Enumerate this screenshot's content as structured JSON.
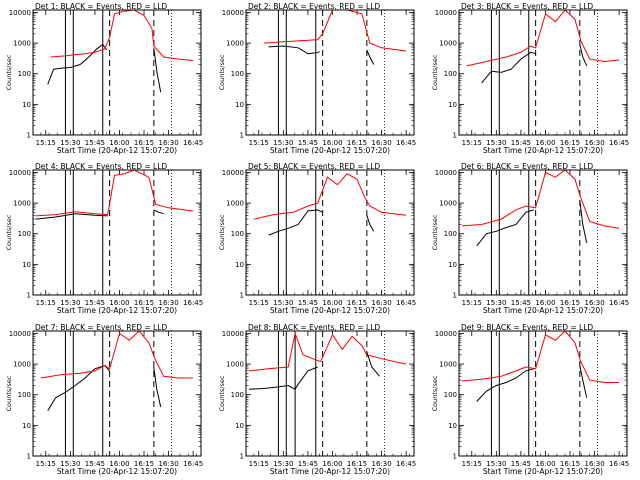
{
  "figure": {
    "xlabel": "Start Time (20-Apr-12 15:07:20)",
    "ylabel": "Counts/sec",
    "x_tick_labels": [
      "15:15",
      "15:30",
      "15:45",
      "16:00",
      "16:15",
      "16:30",
      "16:45"
    ],
    "y_tick_labels": [
      "1",
      "10",
      "100",
      "1000",
      "10000"
    ],
    "colors": {
      "events": "#000000",
      "lld": "#ff0000",
      "axes": "#000000"
    }
  },
  "chart_data": [
    {
      "type": "line",
      "title": "Det 1: BLACK = Events, RED = LLD",
      "row": 0,
      "col": 0,
      "xlim": [
        15.12,
        16.83
      ],
      "ylim": [
        1,
        12000
      ],
      "yscale": "log",
      "solid_vlines": [
        15.45,
        15.53,
        15.83
      ],
      "dashed_vlines": [
        15.9,
        16.35
      ],
      "dotted_vlines": [
        16.53
      ],
      "series": [
        {
          "name": "Events",
          "color": "#000000",
          "x": [
            15.27,
            15.33,
            15.4,
            15.5,
            15.6,
            15.7,
            15.77,
            15.83,
            15.87
          ],
          "y": [
            45,
            140,
            150,
            160,
            200,
            380,
            650,
            900,
            600
          ]
        },
        {
          "name": "Events",
          "color": "#000000",
          "x": [
            16.35,
            16.38,
            16.42
          ],
          "y": [
            700,
            120,
            25
          ]
        },
        {
          "name": "LLD",
          "color": "#ff0000",
          "x": [
            15.3,
            15.45,
            15.55,
            15.65,
            15.75,
            15.85,
            15.9,
            15.95,
            16.05,
            16.15,
            16.25,
            16.33,
            16.35,
            16.45,
            16.6,
            16.75
          ],
          "y": [
            350,
            380,
            420,
            450,
            500,
            650,
            1500,
            9000,
            11000,
            12000,
            8000,
            3000,
            800,
            350,
            300,
            270
          ]
        }
      ]
    },
    {
      "type": "line",
      "title": "Det 2: BLACK = Events, RED = LLD",
      "row": 0,
      "col": 1,
      "xlim": [
        15.12,
        16.83
      ],
      "ylim": [
        1,
        12000
      ],
      "yscale": "log",
      "solid_vlines": [
        15.45,
        15.53,
        15.83
      ],
      "dashed_vlines": [
        15.9,
        16.35
      ],
      "dotted_vlines": [
        16.53
      ],
      "series": [
        {
          "name": "Events",
          "color": "#000000",
          "x": [
            15.35,
            15.5,
            15.65,
            15.75,
            15.83,
            15.87
          ],
          "y": [
            750,
            800,
            700,
            450,
            480,
            520
          ]
        },
        {
          "name": "Events",
          "color": "#000000",
          "x": [
            16.35,
            16.38,
            16.42
          ],
          "y": [
            600,
            350,
            200
          ]
        },
        {
          "name": "LLD",
          "color": "#ff0000",
          "x": [
            15.3,
            15.5,
            15.7,
            15.85,
            15.9,
            16.0,
            16.15,
            16.3,
            16.38,
            16.5,
            16.75
          ],
          "y": [
            1000,
            1100,
            1200,
            1300,
            2000,
            12000,
            12000,
            9000,
            1000,
            700,
            550
          ]
        }
      ]
    },
    {
      "type": "line",
      "title": "Det 3: BLACK = Events, RED = LLD",
      "row": 0,
      "col": 2,
      "xlim": [
        15.12,
        16.83
      ],
      "ylim": [
        1,
        12000
      ],
      "yscale": "log",
      "solid_vlines": [
        15.45,
        15.53,
        15.83
      ],
      "dashed_vlines": [
        15.9,
        16.35
      ],
      "dotted_vlines": [
        16.53
      ],
      "series": [
        {
          "name": "Events",
          "color": "#000000",
          "x": [
            15.35,
            15.45,
            15.55,
            15.65,
            15.75,
            15.85,
            15.9
          ],
          "y": [
            50,
            120,
            110,
            140,
            300,
            500,
            450
          ]
        },
        {
          "name": "Events",
          "color": "#000000",
          "x": [
            16.35,
            16.38,
            16.42
          ],
          "y": [
            900,
            350,
            180
          ]
        },
        {
          "name": "LLD",
          "color": "#ff0000",
          "x": [
            15.2,
            15.4,
            15.6,
            15.75,
            15.85,
            15.9,
            16.0,
            16.1,
            16.2,
            16.3,
            16.36,
            16.45,
            16.6,
            16.75
          ],
          "y": [
            180,
            250,
            350,
            500,
            800,
            700,
            9000,
            5000,
            12000,
            6000,
            1200,
            300,
            250,
            280
          ]
        }
      ]
    },
    {
      "type": "line",
      "title": "Det 4: BLACK = Events, RED = LLD",
      "row": 1,
      "col": 0,
      "xlim": [
        15.12,
        16.83
      ],
      "ylim": [
        1,
        12000
      ],
      "yscale": "log",
      "solid_vlines": [
        15.45,
        15.53,
        15.83
      ],
      "dashed_vlines": [
        15.9,
        16.35
      ],
      "dotted_vlines": [
        16.53
      ],
      "series": [
        {
          "name": "Events",
          "color": "#000000",
          "x": [
            15.15,
            15.35,
            15.55,
            15.75,
            15.88
          ],
          "y": [
            300,
            350,
            450,
            400,
            380
          ]
        },
        {
          "name": "Events",
          "color": "#000000",
          "x": [
            16.35,
            16.4,
            16.45
          ],
          "y": [
            600,
            500,
            450
          ]
        },
        {
          "name": "LLD",
          "color": "#ff0000",
          "x": [
            15.15,
            15.35,
            15.55,
            15.75,
            15.88,
            15.95,
            16.05,
            16.15,
            16.3,
            16.37,
            16.5,
            16.75
          ],
          "y": [
            380,
            420,
            520,
            450,
            420,
            8000,
            9000,
            12000,
            7000,
            900,
            700,
            550
          ]
        }
      ]
    },
    {
      "type": "line",
      "title": "Det 5: BLACK = Events, RED = LLD",
      "row": 1,
      "col": 1,
      "xlim": [
        15.12,
        16.83
      ],
      "ylim": [
        1,
        12000
      ],
      "yscale": "log",
      "solid_vlines": [
        15.45,
        15.53,
        15.83
      ],
      "dashed_vlines": [
        15.9,
        16.35
      ],
      "dotted_vlines": [
        16.53
      ],
      "series": [
        {
          "name": "Events",
          "color": "#000000",
          "x": [
            15.35,
            15.45,
            15.55,
            15.65,
            15.75,
            15.85,
            15.9
          ],
          "y": [
            90,
            120,
            150,
            200,
            550,
            600,
            500
          ]
        },
        {
          "name": "Events",
          "color": "#000000",
          "x": [
            16.35,
            16.38,
            16.42
          ],
          "y": [
            400,
            200,
            120
          ]
        },
        {
          "name": "LLD",
          "color": "#ff0000",
          "x": [
            15.2,
            15.4,
            15.6,
            15.75,
            15.85,
            15.95,
            16.05,
            16.15,
            16.25,
            16.33,
            16.38,
            16.5,
            16.75
          ],
          "y": [
            300,
            420,
            500,
            800,
            1000,
            7000,
            4000,
            9000,
            6000,
            1500,
            800,
            500,
            400
          ]
        }
      ]
    },
    {
      "type": "line",
      "title": "Det 6: BLACK = Events, RED = LLD",
      "row": 1,
      "col": 2,
      "xlim": [
        15.12,
        16.83
      ],
      "ylim": [
        1,
        12000
      ],
      "yscale": "log",
      "solid_vlines": [
        15.45,
        15.53,
        15.83
      ],
      "dashed_vlines": [
        15.9,
        16.35
      ],
      "dotted_vlines": [
        16.53
      ],
      "series": [
        {
          "name": "Events",
          "color": "#000000",
          "x": [
            15.3,
            15.4,
            15.5,
            15.6,
            15.7,
            15.8,
            15.88
          ],
          "y": [
            40,
            100,
            120,
            160,
            200,
            500,
            600
          ]
        },
        {
          "name": "Events",
          "color": "#000000",
          "x": [
            16.35,
            16.38,
            16.42
          ],
          "y": [
            1200,
            200,
            50
          ]
        },
        {
          "name": "LLD",
          "color": "#ff0000",
          "x": [
            15.15,
            15.35,
            15.55,
            15.7,
            15.8,
            15.9,
            16.0,
            16.1,
            16.2,
            16.3,
            16.36,
            16.45,
            16.6,
            16.75
          ],
          "y": [
            180,
            200,
            300,
            600,
            800,
            700,
            10000,
            7000,
            12000,
            6000,
            1500,
            250,
            180,
            150
          ]
        }
      ]
    },
    {
      "type": "line",
      "title": "Det 7: BLACK = Events, RED = LLD",
      "row": 2,
      "col": 0,
      "xlim": [
        15.12,
        16.83
      ],
      "ylim": [
        1,
        12000
      ],
      "yscale": "log",
      "solid_vlines": [
        15.45,
        15.53,
        15.83
      ],
      "dashed_vlines": [
        15.9,
        16.35
      ],
      "dotted_vlines": [
        16.53
      ],
      "series": [
        {
          "name": "Events",
          "color": "#000000",
          "x": [
            15.27,
            15.35,
            15.45,
            15.55,
            15.65,
            15.75,
            15.85,
            15.9
          ],
          "y": [
            30,
            80,
            120,
            200,
            350,
            700,
            900,
            600
          ]
        },
        {
          "name": "Events",
          "color": "#000000",
          "x": [
            16.35,
            16.38,
            16.42
          ],
          "y": [
            800,
            150,
            40
          ]
        },
        {
          "name": "LLD",
          "color": "#ff0000",
          "x": [
            15.2,
            15.4,
            15.6,
            15.75,
            15.85,
            15.9,
            16.0,
            16.1,
            16.2,
            16.3,
            16.36,
            16.45,
            16.6,
            16.75
          ],
          "y": [
            350,
            450,
            500,
            600,
            900,
            700,
            10000,
            6000,
            12000,
            5000,
            1500,
            400,
            350,
            350
          ]
        }
      ]
    },
    {
      "type": "line",
      "title": "Det 8: BLACK = Events, RED = LLD",
      "row": 2,
      "col": 1,
      "xlim": [
        15.12,
        16.83
      ],
      "ylim": [
        1,
        12000
      ],
      "yscale": "log",
      "solid_vlines": [
        15.45,
        15.53,
        15.62,
        15.83
      ],
      "dashed_vlines": [
        15.9,
        16.35
      ],
      "dotted_vlines": [
        16.53
      ],
      "series": [
        {
          "name": "Events",
          "color": "#000000",
          "x": [
            15.15,
            15.3,
            15.45,
            15.55,
            15.62,
            15.65,
            15.75,
            15.85
          ],
          "y": [
            150,
            160,
            180,
            200,
            150,
            220,
            600,
            800
          ]
        },
        {
          "name": "Events",
          "color": "#000000",
          "x": [
            16.35,
            16.4,
            16.48
          ],
          "y": [
            2500,
            800,
            400
          ]
        },
        {
          "name": "LLD",
          "color": "#ff0000",
          "x": [
            15.15,
            15.35,
            15.55,
            15.62,
            15.7,
            15.8,
            15.88,
            16.0,
            16.1,
            16.2,
            16.3,
            16.35,
            16.5,
            16.75
          ],
          "y": [
            600,
            700,
            800,
            10000,
            2000,
            1500,
            1200,
            9000,
            3000,
            8000,
            4000,
            2000,
            1500,
            1000
          ]
        }
      ]
    },
    {
      "type": "line",
      "title": "Det 9: BLACK = Events, RED = LLD",
      "row": 2,
      "col": 2,
      "xlim": [
        15.12,
        16.83
      ],
      "ylim": [
        1,
        12000
      ],
      "yscale": "log",
      "solid_vlines": [
        15.45,
        15.53,
        15.83
      ],
      "dashed_vlines": [
        15.9,
        16.35
      ],
      "dotted_vlines": [
        16.53
      ],
      "series": [
        {
          "name": "Events",
          "color": "#000000",
          "x": [
            15.3,
            15.4,
            15.5,
            15.6,
            15.7,
            15.8,
            15.88
          ],
          "y": [
            60,
            130,
            200,
            250,
            350,
            600,
            700
          ]
        },
        {
          "name": "Events",
          "color": "#000000",
          "x": [
            16.35,
            16.38,
            16.42
          ],
          "y": [
            900,
            300,
            80
          ]
        },
        {
          "name": "LLD",
          "color": "#ff0000",
          "x": [
            15.15,
            15.35,
            15.55,
            15.7,
            15.8,
            15.9,
            16.0,
            16.1,
            16.2,
            16.3,
            16.36,
            16.45,
            16.6,
            16.75
          ],
          "y": [
            280,
            320,
            400,
            600,
            800,
            700,
            9000,
            6000,
            12000,
            5000,
            1200,
            300,
            250,
            250
          ]
        }
      ]
    }
  ]
}
